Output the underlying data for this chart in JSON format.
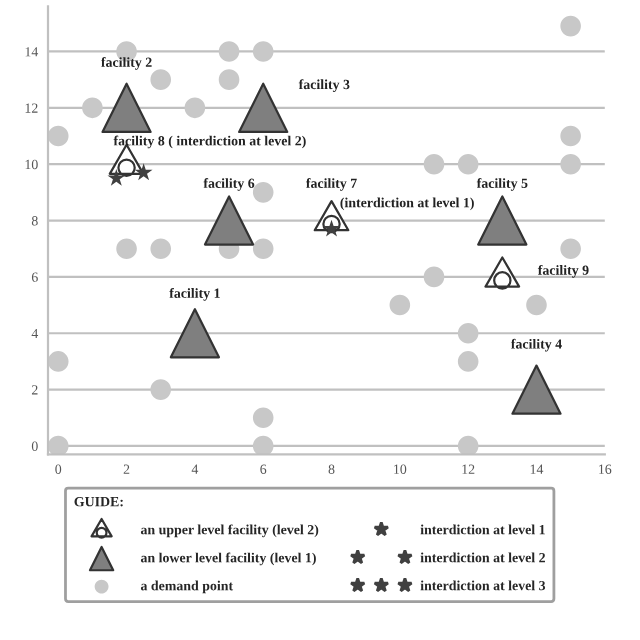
{
  "chart_data": {
    "type": "scatter",
    "xlim": [
      -0.3,
      16
    ],
    "xticks": [
      0,
      2,
      4,
      6,
      8,
      10,
      12,
      14,
      16
    ],
    "ylim": [
      -0.3,
      15.6
    ],
    "yticks": [
      0,
      2,
      4,
      6,
      8,
      10,
      12,
      14
    ],
    "grid": "y",
    "legend": "bottom",
    "legend_title": "GUIDE:",
    "series": [
      {
        "name": "an upper level facility (level 2)",
        "marker": "triangle",
        "color": "#ffffff",
        "x": [
          8,
          2,
          13
        ],
        "values": [
          8,
          10,
          6
        ]
      },
      {
        "name": "an lower level facility (level 1)",
        "marker": "triangle",
        "color": "#7f7f7f",
        "x": [
          4,
          2,
          6,
          14,
          13,
          5
        ],
        "values": [
          4,
          12,
          12,
          2,
          8,
          8
        ]
      },
      {
        "name": "a demand point",
        "marker": "circle",
        "color": "#c8c8c8",
        "x": [
          15,
          2,
          5,
          6,
          3,
          5,
          1,
          4,
          0,
          15,
          11,
          12,
          15,
          6,
          2,
          3,
          5,
          6,
          15,
          11,
          14,
          10,
          12,
          0,
          12,
          3,
          6,
          0,
          6,
          12
        ],
        "values": [
          14.9,
          14,
          14,
          14,
          13,
          13,
          12,
          12,
          11,
          11,
          10,
          10,
          10,
          9,
          7,
          7,
          7,
          7,
          7,
          6,
          5,
          5,
          4,
          3,
          3,
          2,
          1,
          0,
          0,
          0
        ]
      },
      {
        "name": "interdiction at level 1",
        "marker": "star",
        "color": "#404040",
        "x": [
          8
        ],
        "values": [
          7.7
        ]
      },
      {
        "name": "interdiction at level 2",
        "marker": "star",
        "color": "#404040",
        "x": [
          1.7,
          2.5
        ],
        "values": [
          9.5,
          9.7
        ]
      },
      {
        "name": "interdiction at level 3",
        "marker": "star",
        "color": "#404040"
      }
    ],
    "annotations": [
      {
        "text": "facility 1",
        "x": 4,
        "y": 4
      },
      {
        "text": "facility 2",
        "x": 2,
        "y": 12
      },
      {
        "text": "facility 3",
        "x": 6,
        "y": 12
      },
      {
        "text": "facility 4",
        "x": 14,
        "y": 2
      },
      {
        "text": "facility 5",
        "x": 13,
        "y": 8
      },
      {
        "text": "facility 6",
        "x": 5,
        "y": 8
      },
      {
        "text": "facility 7",
        "x": 8,
        "y": 8
      },
      "(interdiction at level 1)",
      {
        "text": "facility 8 ( interdiction at level 2)",
        "x": 2,
        "y": 10
      },
      {
        "text": "facility 9",
        "x": 13,
        "y": 6
      }
    ]
  }
}
